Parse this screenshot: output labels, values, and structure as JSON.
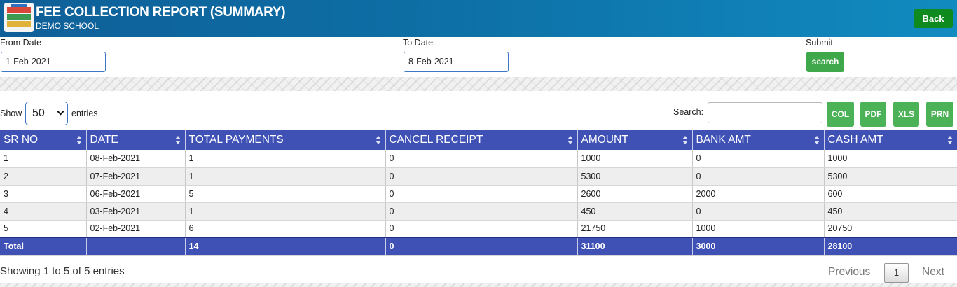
{
  "header": {
    "title": "FEE COLLECTION REPORT (SUMMARY)",
    "subtitle": "DEMO SCHOOL",
    "back_label": "Back"
  },
  "filters": {
    "from_label": "From Date",
    "from_value": "1-Feb-2021",
    "to_label": "To Date",
    "to_value": "8-Feb-2021",
    "submit_label": "Submit",
    "search_button": "search"
  },
  "controls": {
    "show_label": "Show",
    "entries_value": "50",
    "entries_label": "entries",
    "search_label": "Search:",
    "search_value": "",
    "buttons": [
      "COL",
      "PDF",
      "XLS",
      "PRN"
    ]
  },
  "table": {
    "columns": [
      "SR NO",
      "DATE",
      "TOTAL PAYMENTS",
      "CANCEL RECEIPT",
      "AMOUNT",
      "BANK AMT",
      "CASH AMT"
    ],
    "rows": [
      [
        "1",
        "08-Feb-2021",
        "1",
        "0",
        "1000",
        "0",
        "1000"
      ],
      [
        "2",
        "07-Feb-2021",
        "1",
        "0",
        "5300",
        "0",
        "5300"
      ],
      [
        "3",
        "06-Feb-2021",
        "5",
        "0",
        "2600",
        "2000",
        "600"
      ],
      [
        "4",
        "03-Feb-2021",
        "1",
        "0",
        "450",
        "0",
        "450"
      ],
      [
        "5",
        "02-Feb-2021",
        "6",
        "0",
        "21750",
        "1000",
        "20750"
      ]
    ],
    "total": [
      "Total",
      "",
      "14",
      "0",
      "31100",
      "3000",
      "28100"
    ]
  },
  "footer": {
    "info": "Showing 1 to 5 of 5 entries",
    "previous": "Previous",
    "page": "1",
    "next": "Next"
  },
  "colors": {
    "header_accent": "#0d6fa5",
    "table_header": "#3f51b5",
    "button_green": "#4cb257",
    "back_green": "#0e8a1e"
  }
}
